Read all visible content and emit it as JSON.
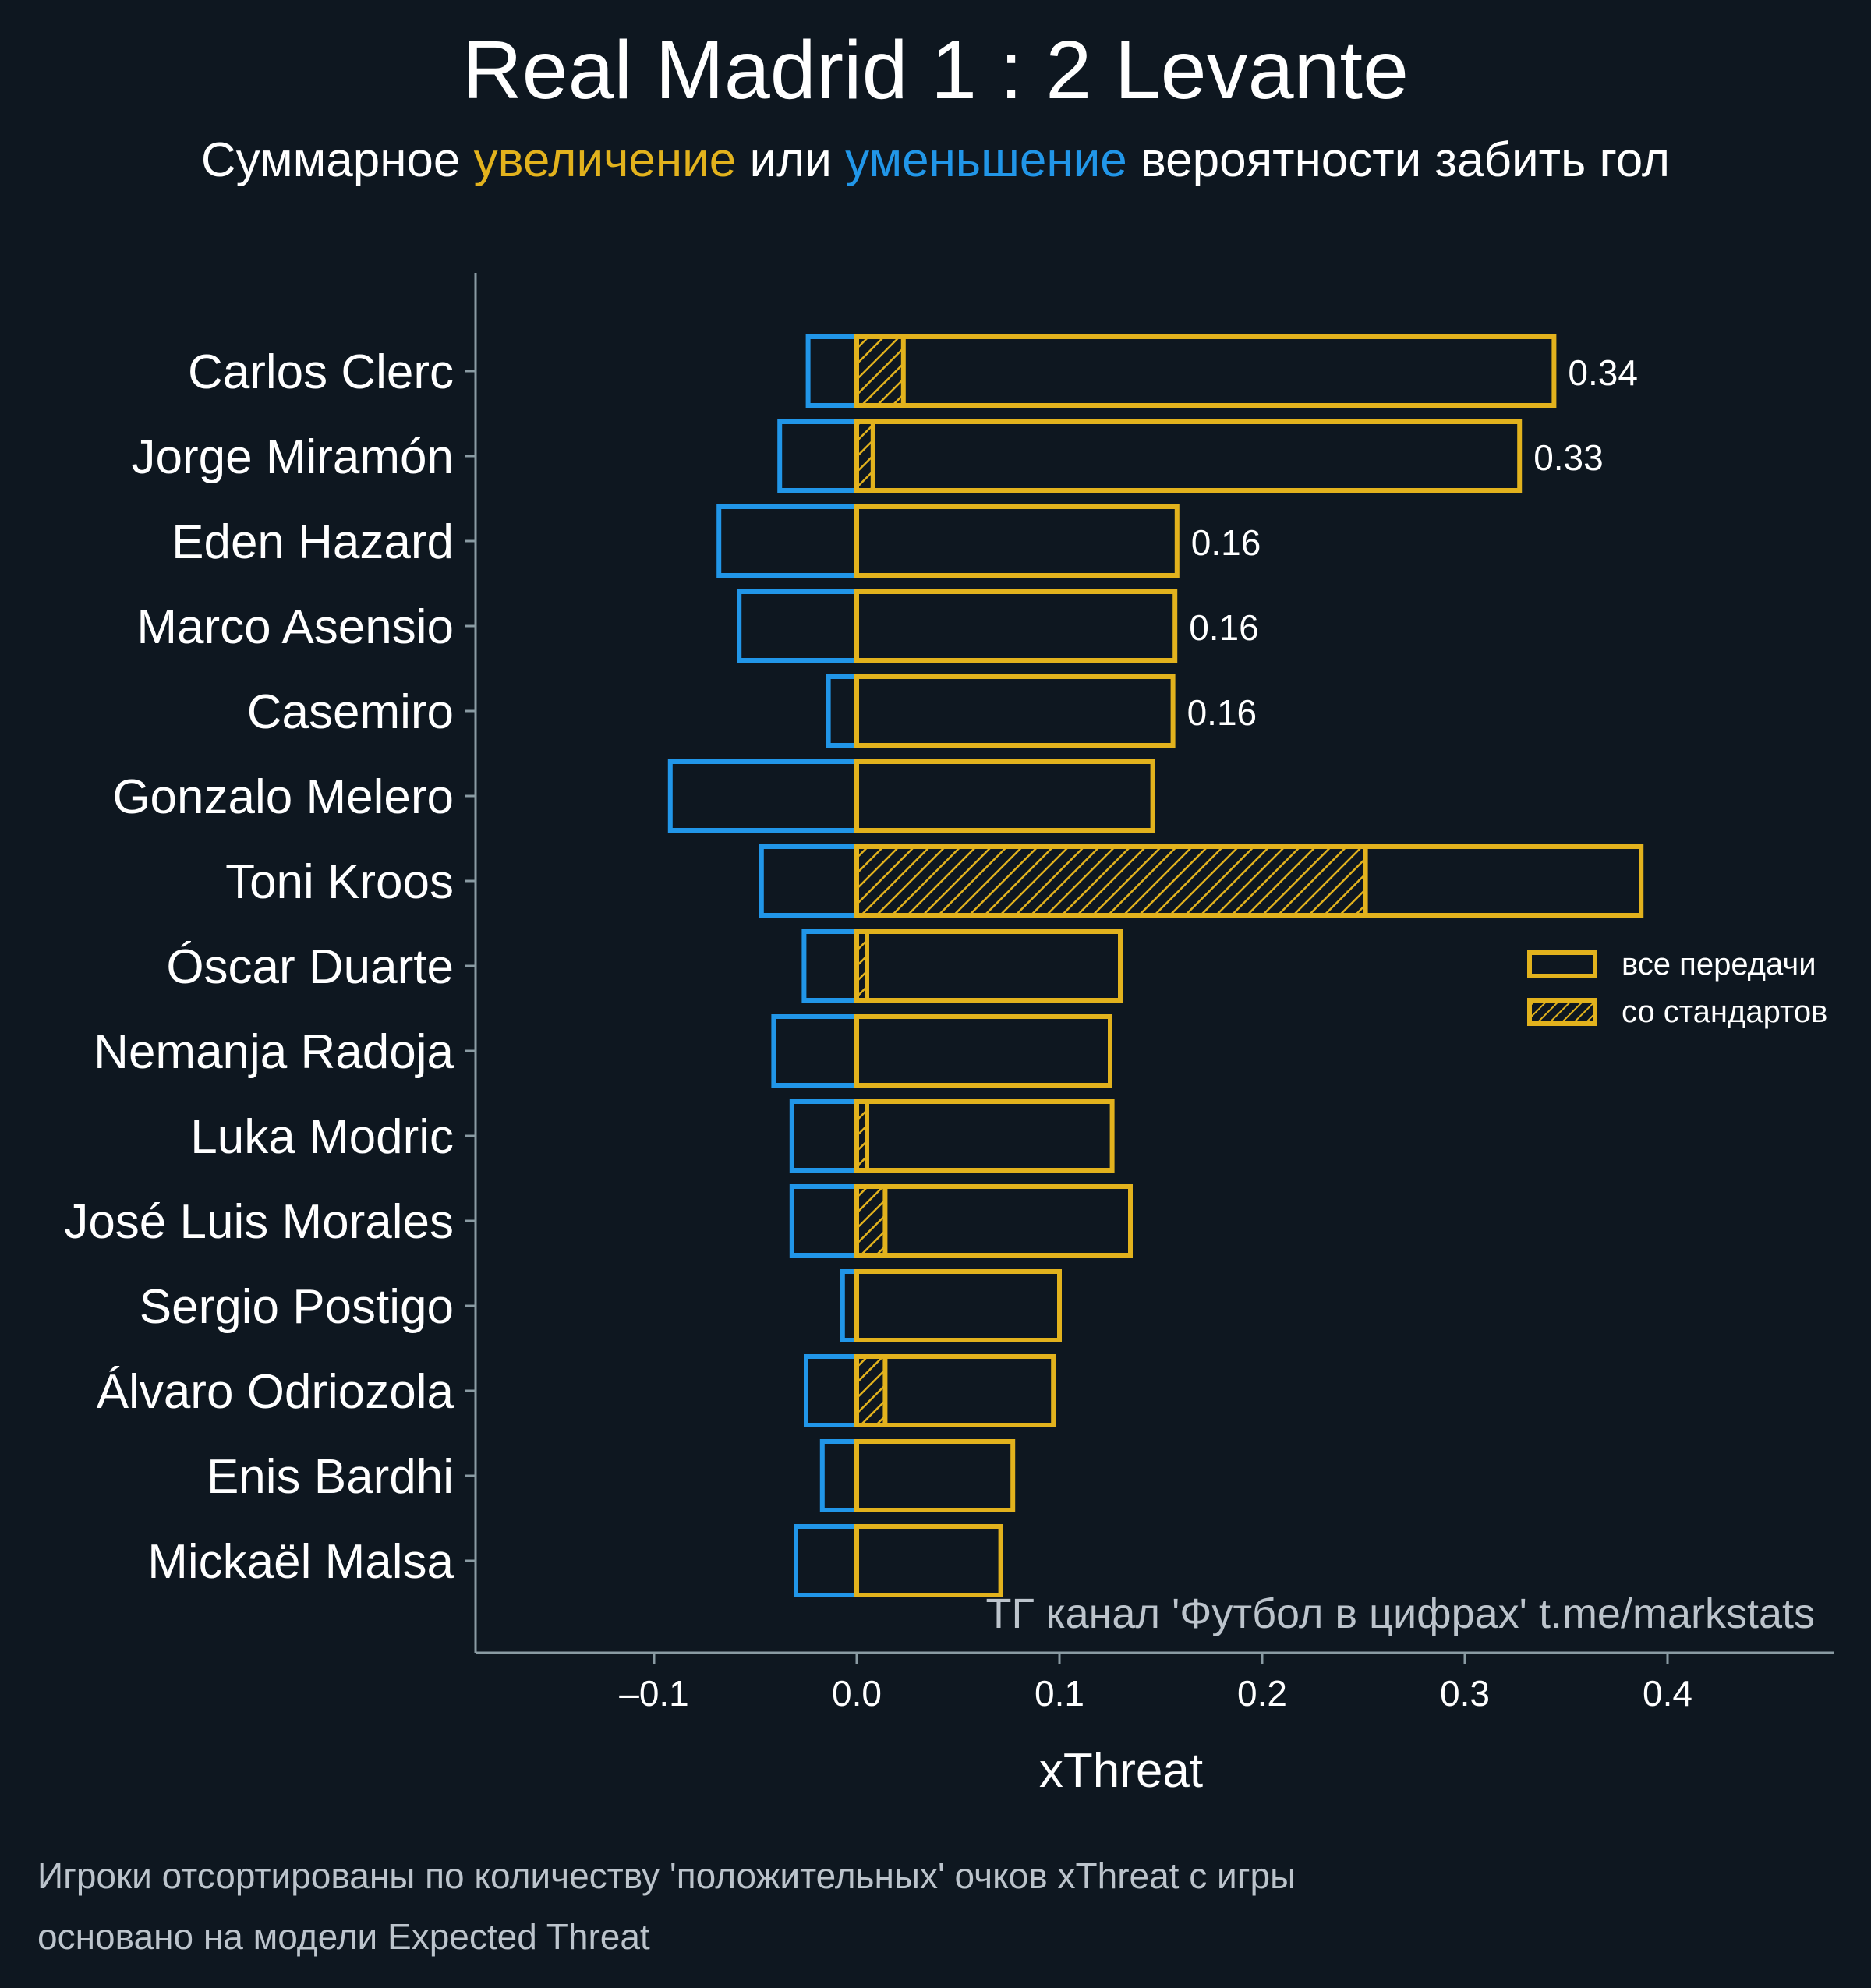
{
  "title": "Real Madrid 1 : 2 Levante",
  "subtitle": {
    "part1": "Суммарное ",
    "positive_word": "увеличение",
    "part2": " или ",
    "negative_word": "уменьшение",
    "part3": " вероятности забить гол"
  },
  "colors": {
    "background": "#0e1720",
    "positive": "#e2b21d",
    "negative": "#2196e8",
    "axis": "#8a9ba3"
  },
  "chart_data": {
    "type": "bar",
    "orientation": "horizontal",
    "xlabel": "xThreat",
    "xlim": [
      -0.19,
      0.48
    ],
    "xticks": [
      -0.1,
      0.0,
      0.1,
      0.2,
      0.3,
      0.4
    ],
    "xtick_labels": [
      "–0.1",
      "0.0",
      "0.1",
      "0.2",
      "0.3",
      "0.4"
    ],
    "grid": false,
    "legend": {
      "placement": "right",
      "entries": [
        "все передачи",
        "со стандартов"
      ]
    },
    "watermark": "ТГ канал 'Футбол в цифрах'  t.me/markstats",
    "categories": [
      "Carlos Clerc",
      "Jorge Miramón",
      "Eden Hazard",
      "Marco Asensio",
      "Casemiro",
      "Gonzalo Melero",
      "Toni Kroos",
      "Óscar Duarte",
      "Nemanja Radoja",
      "Luka Modric",
      "José Luis Morales",
      "Sergio Postigo",
      "Álvaro Odriozola",
      "Enis Bardhi",
      "Mickaël Malsa"
    ],
    "series": [
      {
        "name": "все передачи",
        "key": "positive",
        "values": [
          0.344,
          0.327,
          0.158,
          0.157,
          0.156,
          0.146,
          0.387,
          0.13,
          0.125,
          0.126,
          0.135,
          0.1,
          0.097,
          0.077,
          0.071
        ]
      },
      {
        "name": "со стандартов",
        "key": "set_pieces",
        "values": [
          0.023,
          0.008,
          0.0,
          0.0,
          0.0,
          0.0,
          0.251,
          0.005,
          0.0,
          0.005,
          0.014,
          0.0,
          0.014,
          0.0,
          0.0
        ]
      },
      {
        "key": "negative",
        "values": [
          -0.024,
          -0.038,
          -0.068,
          -0.058,
          -0.014,
          -0.092,
          -0.047,
          -0.026,
          -0.041,
          -0.032,
          -0.032,
          -0.007,
          -0.025,
          -0.017,
          -0.03
        ]
      }
    ],
    "value_labels": [
      "0.34",
      "0.33",
      "0.16",
      "0.16",
      "0.16",
      "",
      "",
      "",
      "",
      "",
      "",
      "",
      "",
      "",
      ""
    ]
  },
  "footnotes": [
    "Игроки отсортированы по количеству 'положительных' очков xThreat с игры",
    "основано на модели Expected Threat"
  ]
}
